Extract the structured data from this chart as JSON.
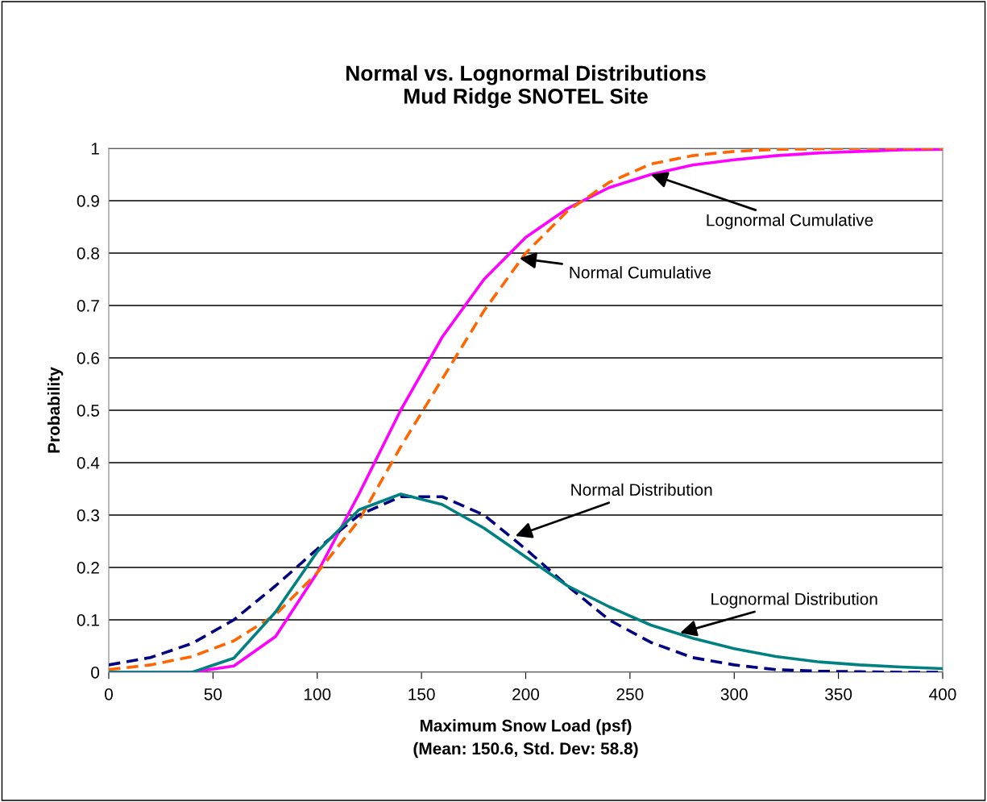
{
  "chart_data": {
    "type": "line",
    "title": "Normal vs. Lognormal Distributions\nMud Ridge SNOTEL Site",
    "xlabel": "Maximum Snow Load (psf)\n(Mean: 150.6, Std. Dev: 58.8)",
    "ylabel": "Probability",
    "x": [
      0,
      20,
      40,
      60,
      80,
      100,
      120,
      140,
      160,
      180,
      200,
      220,
      240,
      260,
      280,
      300,
      320,
      340,
      360,
      380,
      400
    ],
    "series": [
      {
        "color": "#ff00ff",
        "line_style": "solid",
        "values": [
          0,
          0,
          0,
          0.012,
          0.068,
          0.19,
          0.34,
          0.5,
          0.64,
          0.75,
          0.83,
          0.885,
          0.925,
          0.95,
          0.968,
          0.978,
          0.986,
          0.991,
          0.994,
          0.997,
          0.998
        ]
      },
      {
        "color": "#ff6600",
        "line_style": "dashed",
        "values": [
          0.005,
          0.014,
          0.03,
          0.06,
          0.11,
          0.19,
          0.29,
          0.43,
          0.56,
          0.69,
          0.8,
          0.88,
          0.935,
          0.97,
          0.986,
          0.994,
          0.998,
          0.999,
          1,
          1,
          1
        ]
      },
      {
        "color": "#000080",
        "line_style": "dashed",
        "values": [
          0.014,
          0.028,
          0.055,
          0.1,
          0.165,
          0.235,
          0.3,
          0.335,
          0.335,
          0.3,
          0.235,
          0.165,
          0.1,
          0.057,
          0.028,
          0.014,
          0.005,
          0.002,
          0.001,
          0,
          0
        ]
      },
      {
        "color": "#008080",
        "line_style": "solid",
        "values": [
          0,
          0,
          0,
          0.027,
          0.115,
          0.23,
          0.31,
          0.34,
          0.32,
          0.275,
          0.22,
          0.165,
          0.125,
          0.09,
          0.065,
          0.045,
          0.03,
          0.02,
          0.014,
          0.01,
          0.007
        ]
      }
    ],
    "annotations": [
      {
        "text": "Lognormal Cumulative",
        "x": 260,
        "y": 0.95
      },
      {
        "text": "Normal Cumulative",
        "x": 197,
        "y": 0.79
      },
      {
        "text": "Normal Distribution",
        "x": 195,
        "y": 0.26
      },
      {
        "text": "Lognormal Distribution",
        "x": 274,
        "y": 0.075
      }
    ],
    "xlim": [
      0,
      400
    ],
    "xticks": [
      0,
      50,
      100,
      150,
      200,
      250,
      300,
      350,
      400
    ],
    "ylim": [
      0,
      1
    ],
    "yticks": [
      0,
      0.1,
      0.2,
      0.3,
      0.4,
      0.5,
      0.6,
      0.7,
      0.8,
      0.9,
      1
    ],
    "grid": "y",
    "marker": "none"
  }
}
